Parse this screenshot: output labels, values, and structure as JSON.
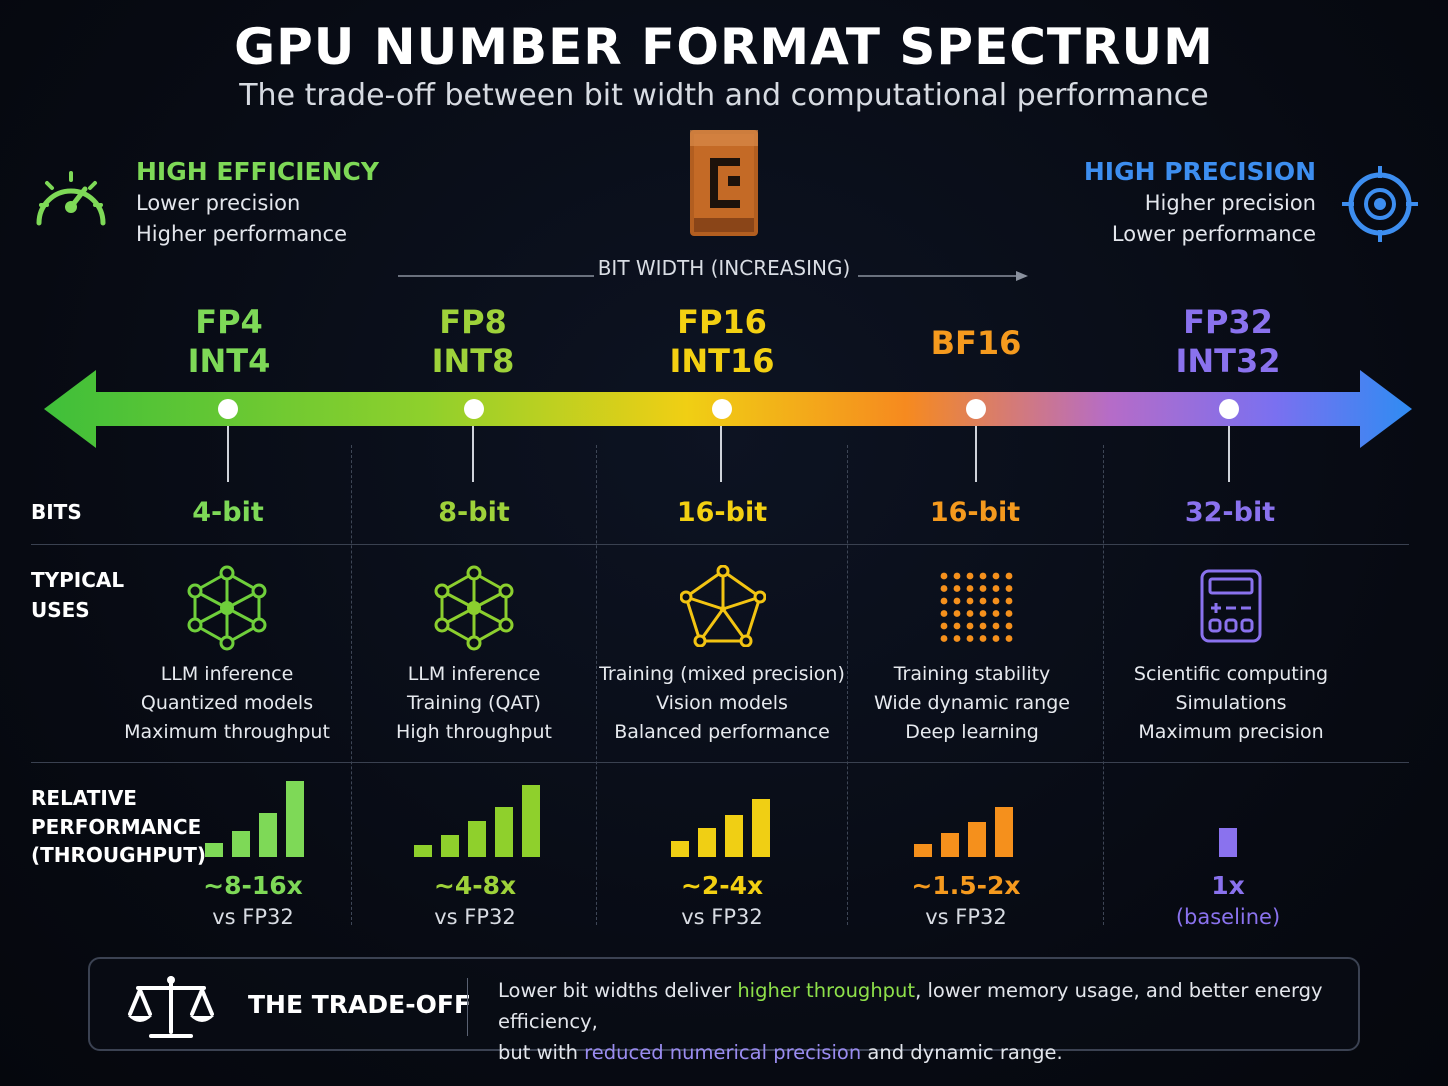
{
  "header": {
    "title": "GPU NUMBER FORMAT SPECTRUM",
    "subtitle": "The trade-off between bit width and computational performance"
  },
  "left_corner": {
    "heading": "HIGH EFFICIENCY",
    "line1": "Lower precision",
    "line2": "Higher performance",
    "icon": "speedometer-icon",
    "color": "#7ed957"
  },
  "right_corner": {
    "heading": "HIGH PRECISION",
    "line1": "Higher precision",
    "line2": "Lower performance",
    "icon": "target-icon",
    "color": "#3d8ef0"
  },
  "axis": {
    "label": "BIT WIDTH (INCREASING)"
  },
  "row_labels": {
    "bits": "BITS",
    "uses_1": "TYPICAL",
    "uses_2": "USES",
    "perf_1": "RELATIVE",
    "perf_2": "PERFORMANCE",
    "perf_3": "(THROUGHPUT)"
  },
  "formats": [
    {
      "line1": "FP4",
      "line2": "INT4",
      "color": "#7ed957",
      "bits": "4-bit",
      "icon": "network-icon",
      "uses": [
        "LLM inference",
        "Quantized models",
        "Maximum throughput"
      ],
      "perf": "~8-16x",
      "perf_sub": "vs FP32",
      "bars": [
        0.18,
        0.33,
        0.55,
        0.95
      ]
    },
    {
      "line1": "FP8",
      "line2": "INT8",
      "color": "#9ed23a",
      "bits": "8-bit",
      "icon": "network-icon",
      "uses": [
        "LLM inference",
        "Training (QAT)",
        "High throughput"
      ],
      "perf": "~4-8x",
      "perf_sub": "vs FP32",
      "bars": [
        0.15,
        0.27,
        0.45,
        0.63,
        0.9
      ]
    },
    {
      "line1": "FP16",
      "line2": "INT16",
      "color": "#f3d012",
      "bits": "16-bit",
      "icon": "pentagon-network-icon",
      "uses": [
        "Training (mixed precision)",
        "Vision models",
        "Balanced performance"
      ],
      "perf": "~2-4x",
      "perf_sub": "vs FP32",
      "bars": [
        0.2,
        0.36,
        0.52,
        0.72
      ]
    },
    {
      "line1": "BF16",
      "line2": "",
      "color": "#f59a1e",
      "bits": "16-bit",
      "icon": "dot-grid-icon",
      "uses": [
        "Training stability",
        "Wide dynamic range",
        "Deep learning"
      ],
      "perf": "~1.5-2x",
      "perf_sub": "vs FP32",
      "bars": [
        0.16,
        0.3,
        0.44,
        0.62
      ]
    },
    {
      "line1": "FP32",
      "line2": "INT32",
      "color": "#8a72ee",
      "bits": "32-bit",
      "icon": "calculator-icon",
      "uses": [
        "Scientific computing",
        "Simulations",
        "Maximum precision"
      ],
      "perf": "1x",
      "perf_sub": "(baseline)",
      "bars": [
        0.36
      ]
    }
  ],
  "tradeoff": {
    "icon": "scale-icon",
    "title": "THE TRADE-OFF",
    "t1": "Lower bit widths deliver ",
    "t2": "higher throughput",
    "t3": ", lower memory usage, and better energy efficiency,",
    "t4": "but with ",
    "t5": "reduced numerical precision",
    "t6": " and dynamic range.",
    "highlight_green": "#8ee04a",
    "highlight_purple": "#9a8cf0"
  }
}
